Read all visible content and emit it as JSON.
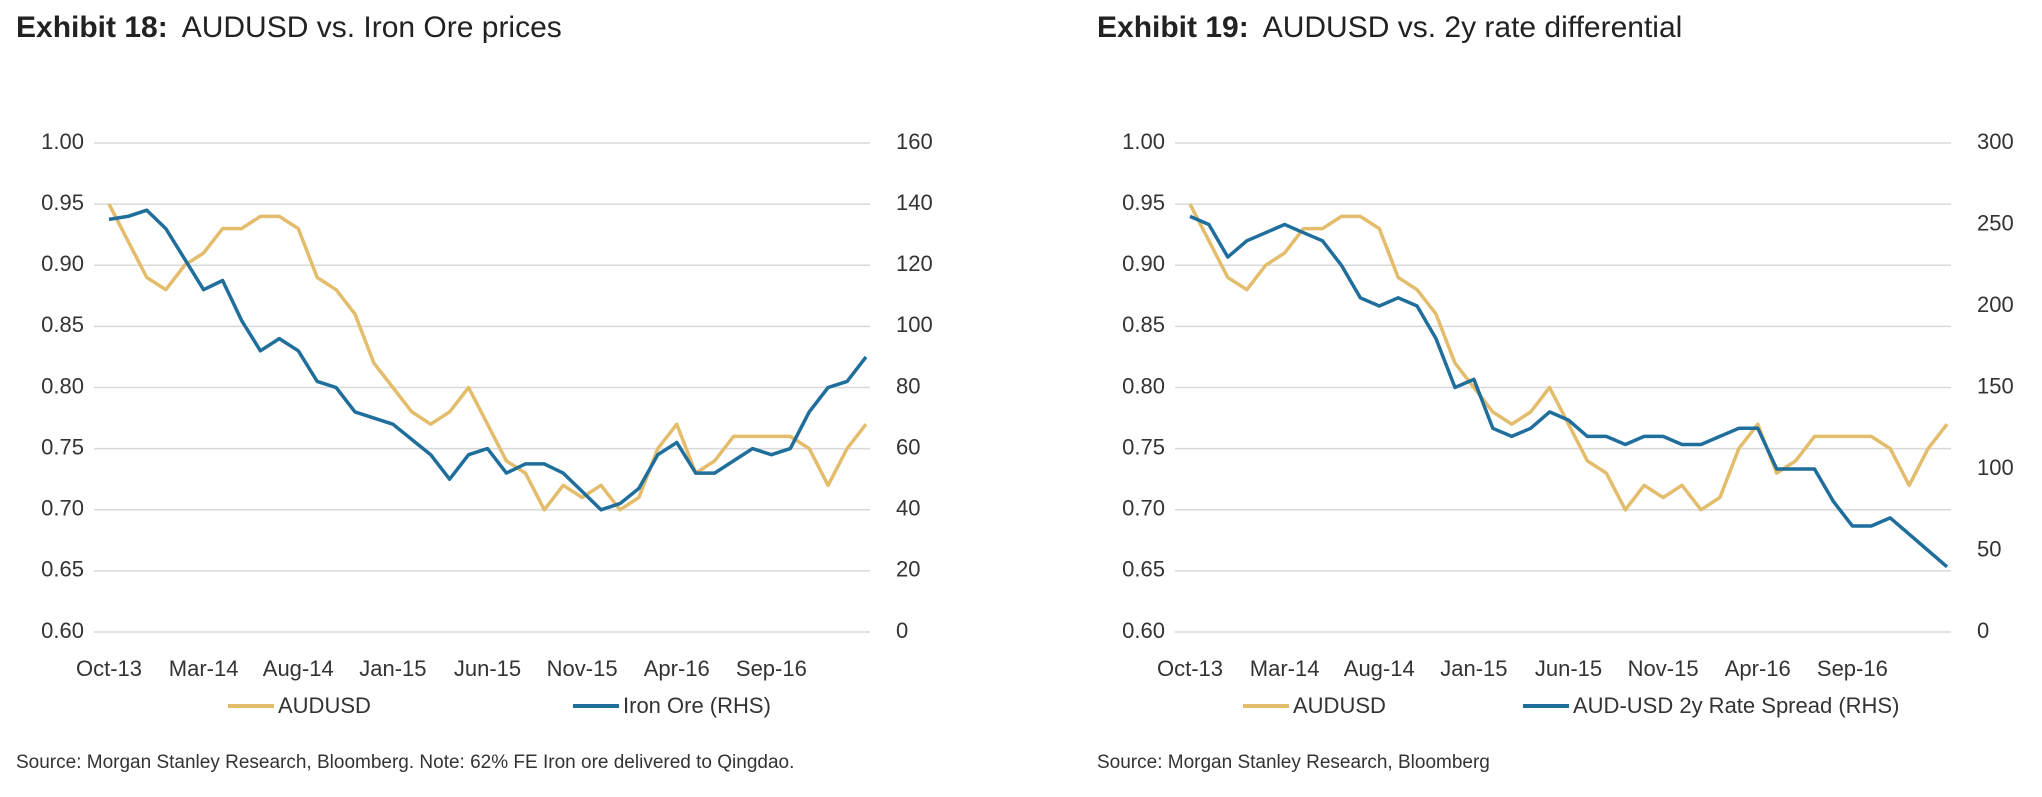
{
  "chart_data": [
    {
      "type": "line",
      "exhibit": "Exhibit 18:",
      "title": "AUDUSD vs. Iron Ore prices",
      "source": "Source: Morgan Stanley Research, Bloomberg. Note: 62% FE Iron ore delivered to Qingdao.",
      "x": [
        "Oct-13",
        "Nov-13",
        "Dec-13",
        "Jan-14",
        "Feb-14",
        "Mar-14",
        "Apr-14",
        "May-14",
        "Jun-14",
        "Jul-14",
        "Aug-14",
        "Sep-14",
        "Oct-14",
        "Nov-14",
        "Dec-14",
        "Jan-15",
        "Feb-15",
        "Mar-15",
        "Apr-15",
        "May-15",
        "Jun-15",
        "Jul-15",
        "Aug-15",
        "Sep-15",
        "Oct-15",
        "Nov-15",
        "Dec-15",
        "Jan-16",
        "Feb-16",
        "Mar-16",
        "Apr-16",
        "May-16",
        "Jun-16",
        "Jul-16",
        "Aug-16",
        "Sep-16",
        "Oct-16",
        "Nov-16",
        "Dec-16",
        "Jan-17",
        "Feb-17"
      ],
      "xticks": [
        "Oct-13",
        "Mar-14",
        "Aug-14",
        "Jan-15",
        "Jun-15",
        "Nov-15",
        "Apr-16",
        "Sep-16"
      ],
      "ylim": [
        0.6,
        1.0
      ],
      "yticks": [
        {
          "value": 0.6,
          "label": "0.60"
        },
        0.65,
        {
          "value": 0.7,
          "label": "0.70"
        },
        0.75,
        {
          "value": 0.8,
          "label": "0.80"
        },
        0.85,
        {
          "value": 0.9,
          "label": "0.90"
        },
        0.95,
        {
          "value": 1.0,
          "label": "1.00"
        }
      ],
      "y2lim": [
        0,
        160
      ],
      "y2ticks": [
        0,
        20,
        40,
        60,
        80,
        100,
        120,
        140,
        160
      ],
      "grid": true,
      "series": [
        {
          "name": "AUDUSD",
          "color": "#e3bd6b",
          "values": [
            0.95,
            0.92,
            0.89,
            0.88,
            0.9,
            0.91,
            0.93,
            0.93,
            0.94,
            0.94,
            0.93,
            0.89,
            0.88,
            0.86,
            0.82,
            0.8,
            0.78,
            0.77,
            0.78,
            0.8,
            0.77,
            0.74,
            0.73,
            0.7,
            0.72,
            0.71,
            0.72,
            0.7,
            0.71,
            0.75,
            0.77,
            0.73,
            0.74,
            0.76,
            0.76,
            0.76,
            0.76,
            0.75,
            0.72,
            0.75,
            0.77
          ]
        },
        {
          "name": "Iron Ore (RHS)",
          "color": "#1f6e9c",
          "axis": "y2",
          "values": [
            135,
            136,
            138,
            132,
            122,
            112,
            115,
            102,
            92,
            96,
            92,
            82,
            80,
            72,
            70,
            68,
            63,
            58,
            50,
            58,
            60,
            52,
            55,
            55,
            52,
            46,
            40,
            42,
            47,
            58,
            62,
            52,
            52,
            56,
            60,
            58,
            60,
            72,
            80,
            82,
            90
          ]
        }
      ]
    },
    {
      "type": "line",
      "exhibit": "Exhibit 19:",
      "title": "AUDUSD vs. 2y rate differential",
      "source": "Source: Morgan Stanley Research, Bloomberg",
      "x": [
        "Oct-13",
        "Nov-13",
        "Dec-13",
        "Jan-14",
        "Feb-14",
        "Mar-14",
        "Apr-14",
        "May-14",
        "Jun-14",
        "Jul-14",
        "Aug-14",
        "Sep-14",
        "Oct-14",
        "Nov-14",
        "Dec-14",
        "Jan-15",
        "Feb-15",
        "Mar-15",
        "Apr-15",
        "May-15",
        "Jun-15",
        "Jul-15",
        "Aug-15",
        "Sep-15",
        "Oct-15",
        "Nov-15",
        "Dec-15",
        "Jan-16",
        "Feb-16",
        "Mar-16",
        "Apr-16",
        "May-16",
        "Jun-16",
        "Jul-16",
        "Aug-16",
        "Sep-16",
        "Oct-16",
        "Nov-16",
        "Dec-16",
        "Jan-17",
        "Feb-17"
      ],
      "xticks": [
        "Oct-13",
        "Mar-14",
        "Aug-14",
        "Jan-15",
        "Jun-15",
        "Nov-15",
        "Apr-16",
        "Sep-16"
      ],
      "ylim": [
        0.6,
        1.0
      ],
      "yticks": [
        {
          "value": 0.6,
          "label": "0.60"
        },
        0.65,
        {
          "value": 0.7,
          "label": "0.70"
        },
        0.75,
        {
          "value": 0.8,
          "label": "0.80"
        },
        0.85,
        {
          "value": 0.9,
          "label": "0.90"
        },
        0.95,
        {
          "value": 1.0,
          "label": "1.00"
        }
      ],
      "y2lim": [
        0,
        300
      ],
      "y2ticks": [
        0,
        50,
        100,
        150,
        200,
        250,
        300
      ],
      "grid": true,
      "series": [
        {
          "name": "AUDUSD",
          "color": "#e3bd6b",
          "values": [
            0.95,
            0.92,
            0.89,
            0.88,
            0.9,
            0.91,
            0.93,
            0.93,
            0.94,
            0.94,
            0.93,
            0.89,
            0.88,
            0.86,
            0.82,
            0.8,
            0.78,
            0.77,
            0.78,
            0.8,
            0.77,
            0.74,
            0.73,
            0.7,
            0.72,
            0.71,
            0.72,
            0.7,
            0.71,
            0.75,
            0.77,
            0.73,
            0.74,
            0.76,
            0.76,
            0.76,
            0.76,
            0.75,
            0.72,
            0.75,
            0.77
          ]
        },
        {
          "name": "AUD-USD 2y Rate Spread (RHS)",
          "color": "#1f6e9c",
          "axis": "y2",
          "values": [
            255,
            250,
            230,
            240,
            245,
            250,
            245,
            240,
            225,
            205,
            200,
            205,
            200,
            180,
            150,
            155,
            125,
            120,
            125,
            135,
            130,
            120,
            120,
            115,
            120,
            120,
            115,
            115,
            120,
            125,
            125,
            100,
            100,
            100,
            80,
            65,
            65,
            70,
            60,
            50,
            40
          ]
        }
      ]
    }
  ]
}
